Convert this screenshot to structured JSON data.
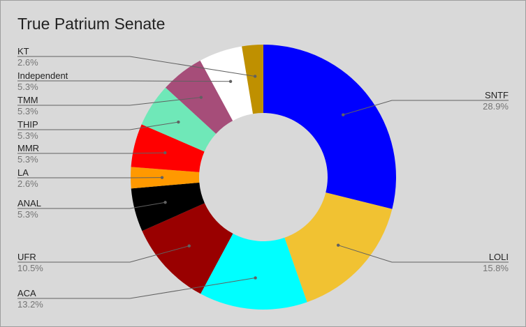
{
  "chart_data": {
    "type": "pie",
    "donut": true,
    "title": "True Patrium Senate",
    "slices": [
      {
        "name": "SNTF",
        "value": 28.9,
        "label": "28.9%",
        "color": "#0000ff"
      },
      {
        "name": "LOLI",
        "value": 15.8,
        "label": "15.8%",
        "color": "#f1c232"
      },
      {
        "name": "ACA",
        "value": 13.2,
        "label": "13.2%",
        "color": "#00ffff"
      },
      {
        "name": "UFR",
        "value": 10.5,
        "label": "10.5%",
        "color": "#990000"
      },
      {
        "name": "ANAL",
        "value": 5.3,
        "label": "5.3%",
        "color": "#000000"
      },
      {
        "name": "LA",
        "value": 2.6,
        "label": "2.6%",
        "color": "#ff9900"
      },
      {
        "name": "MMR",
        "value": 5.3,
        "label": "5.3%",
        "color": "#ff0000"
      },
      {
        "name": "THIP",
        "value": 5.3,
        "label": "5.3%",
        "color": "#6fe8b8"
      },
      {
        "name": "TMM",
        "value": 5.3,
        "label": "5.3%",
        "color": "#a64d79"
      },
      {
        "name": "Independent",
        "value": 5.3,
        "label": "5.3%",
        "color": "#ffffff"
      },
      {
        "name": "KT",
        "value": 2.6,
        "label": "2.6%",
        "color": "#bf9000"
      }
    ],
    "legend": "none"
  }
}
